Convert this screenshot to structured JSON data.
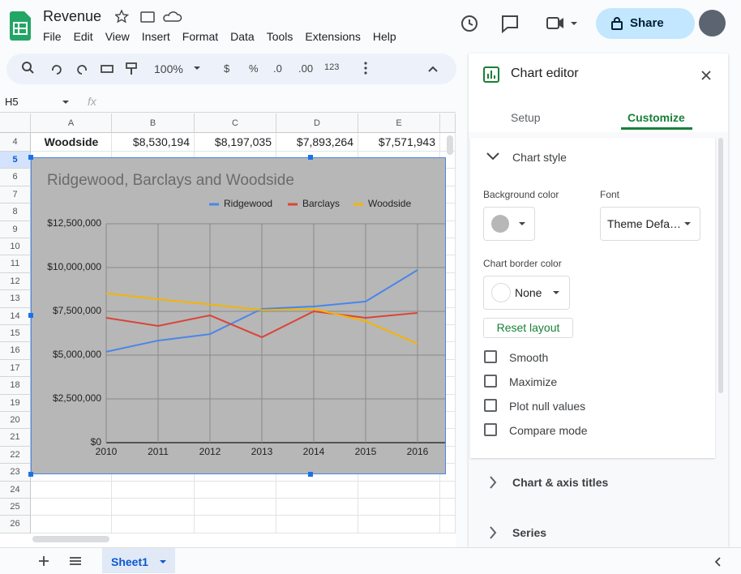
{
  "header": {
    "title": "Revenue",
    "menu": [
      "File",
      "Edit",
      "View",
      "Insert",
      "Format",
      "Data",
      "Tools",
      "Extensions",
      "Help"
    ],
    "share": "Share"
  },
  "toolbar": {
    "zoom": "100%",
    "items": [
      "$",
      "%",
      ".0",
      ".00",
      "123"
    ]
  },
  "formula_bar": {
    "cell": "H5",
    "fx": "fx"
  },
  "sheet": {
    "columns": [
      "A",
      "B",
      "C",
      "D",
      "E"
    ],
    "rows": [
      "4",
      "5",
      "6",
      "7",
      "8",
      "9",
      "10",
      "11",
      "12",
      "13",
      "14",
      "15",
      "16",
      "17",
      "18",
      "19",
      "20",
      "21",
      "22",
      "23",
      "24",
      "25",
      "26"
    ],
    "cells": [
      [
        "Woodside",
        "$8,530,194",
        "$8,197,035",
        "$7,893,264",
        "$7,571,943"
      ]
    ]
  },
  "chart_data": {
    "type": "line",
    "title": "Ridgewood, Barclays and Woodside",
    "x": [
      2010,
      2011,
      2012,
      2013,
      2014,
      2015,
      2016
    ],
    "series": [
      {
        "name": "Ridgewood",
        "color": "#4a86e8",
        "values": [
          5190000,
          5830000,
          6200000,
          7640000,
          7780000,
          8060000,
          9860000
        ]
      },
      {
        "name": "Barclays",
        "color": "#db4437",
        "values": [
          7130000,
          6670000,
          7270000,
          6020000,
          7500000,
          7130000,
          7410000
        ]
      },
      {
        "name": "Woodside",
        "color": "#f4b400",
        "values": [
          8530194,
          8197035,
          7893264,
          7571943,
          7640000,
          6940000,
          5650000
        ]
      }
    ],
    "xlim": [
      2010,
      2017
    ],
    "xticks": [
      2010,
      2011,
      2012,
      2013,
      2014,
      2015,
      2016
    ],
    "ylim": [
      0,
      12500000
    ],
    "yticks": [
      {
        "value": 0,
        "label": "$0"
      },
      {
        "value": 2500000,
        "label": "$2,500,000"
      },
      {
        "value": 5000000,
        "label": "$5,000,000"
      },
      {
        "value": 7500000,
        "label": "$7,500,000"
      },
      {
        "value": 10000000,
        "label": "$10,000,000"
      },
      {
        "value": 12500000,
        "label": "$12,500,000"
      }
    ],
    "grid": true,
    "legend": "top",
    "background": "#b7b7b7"
  },
  "editor": {
    "title": "Chart editor",
    "tabs": [
      "Setup",
      "Customize"
    ],
    "section": "Chart style",
    "background_label": "Background color",
    "font_label": "Font",
    "font_value": "Theme Defa…",
    "border_label": "Chart border color",
    "border_value": "None",
    "reset": "Reset layout",
    "options": [
      "Smooth",
      "Maximize",
      "Plot null values",
      "Compare mode"
    ],
    "more_sections": [
      "Chart & axis titles",
      "Series"
    ]
  },
  "footer": {
    "tab": "Sheet1"
  }
}
